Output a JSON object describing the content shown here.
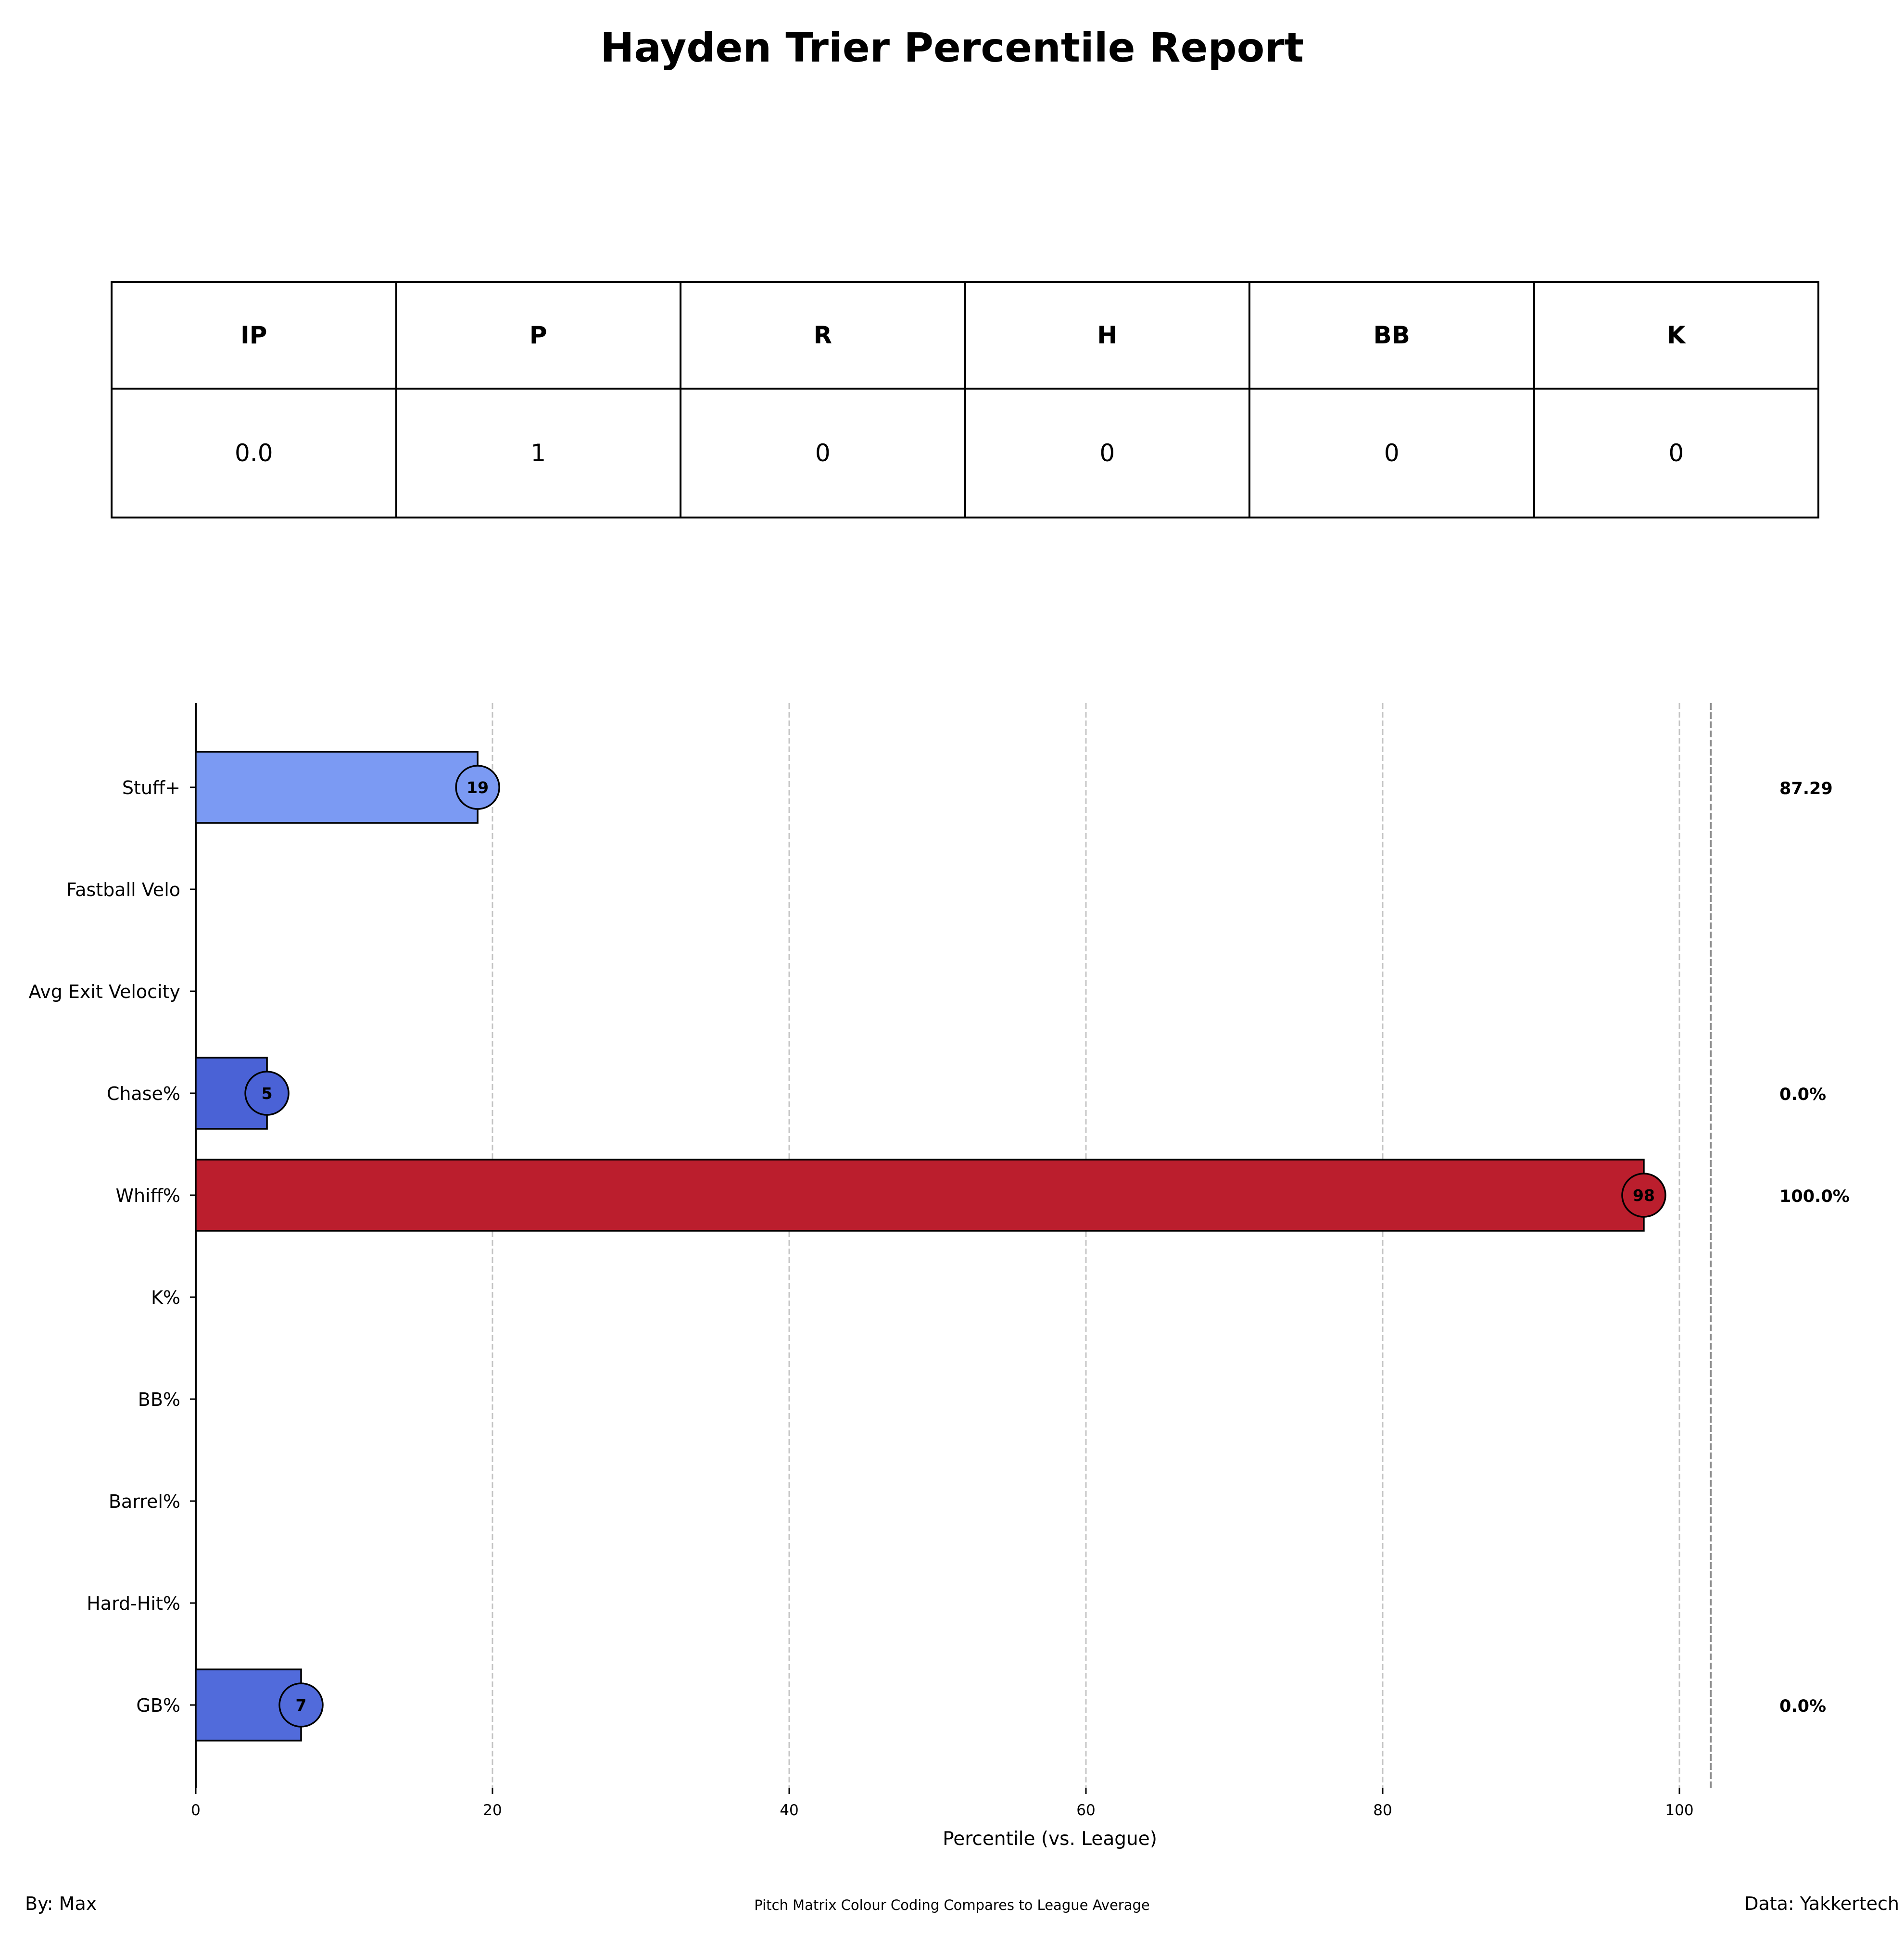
{
  "title": "Hayden Trier Percentile Report",
  "stats_table": {
    "headers": [
      "IP",
      "P",
      "R",
      "H",
      "BB",
      "K"
    ],
    "values": [
      "0.0",
      "1",
      "0",
      "0",
      "0",
      "0"
    ]
  },
  "chart_data": {
    "type": "bar",
    "orientation": "horizontal",
    "xlabel": "Percentile (vs. League)",
    "xlim": [
      0,
      110
    ],
    "xticks": [
      0,
      20,
      40,
      60,
      80,
      100
    ],
    "grid": "vertical dashed",
    "categories": [
      "Stuff+",
      "Fastball Velo",
      "Avg Exit Velocity",
      "Chase%",
      "Whiff%",
      "K%",
      "BB%",
      "Barrel%",
      "Hard-Hit%",
      "GB%"
    ],
    "values": [
      19,
      null,
      null,
      4.8,
      97.6,
      null,
      null,
      null,
      null,
      7.1
    ],
    "value_labels": [
      "19",
      "",
      "",
      "5",
      "98",
      "",
      "",
      "",
      "",
      "7"
    ],
    "raw_values": [
      "87.29",
      "",
      "",
      "0.0%",
      "100.0%",
      "",
      "",
      "",
      "",
      "0.0%"
    ],
    "colors": [
      "#7b9af3",
      null,
      null,
      "#4a62d6",
      "#bb1e2d",
      null,
      null,
      null,
      null,
      "#516bdb"
    ]
  },
  "footer": {
    "left": "By: Max",
    "center": "Pitch Matrix Colour Coding Compares to League Average",
    "right": "Data: Yakkertech"
  }
}
